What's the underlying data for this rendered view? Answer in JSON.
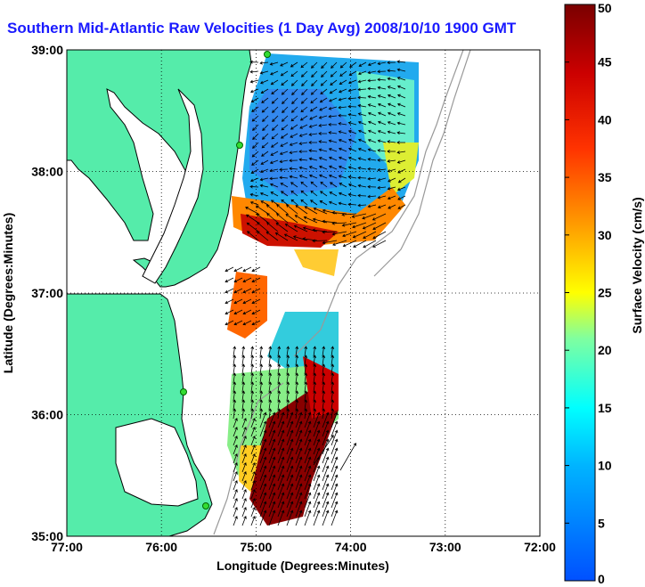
{
  "title": "Southern Mid-Atlantic Raw Velocities (1 Day Avg) 2008/10/10 1900 GMT",
  "x_axis": {
    "label": "Longitude (Degrees:Minutes)",
    "ticks": [
      {
        "value": -77,
        "label": "77:00"
      },
      {
        "value": -76,
        "label": "76:00"
      },
      {
        "value": -75,
        "label": "75:00"
      },
      {
        "value": -74,
        "label": "74:00"
      },
      {
        "value": -73,
        "label": "73:00"
      },
      {
        "value": -72,
        "label": "72:00"
      }
    ],
    "range": [
      -77,
      -72
    ]
  },
  "y_axis": {
    "label": "Latitude (Degrees:Minutes)",
    "ticks": [
      {
        "value": 39,
        "label": "39:00"
      },
      {
        "value": 38,
        "label": "38:00"
      },
      {
        "value": 37,
        "label": "37:00"
      },
      {
        "value": 36,
        "label": "36:00"
      },
      {
        "value": 35,
        "label": "35:00"
      }
    ],
    "range": [
      35,
      39
    ]
  },
  "colorbar": {
    "label": "Surface Velocity (cm/s)",
    "range": [
      0,
      50
    ],
    "ticks": [
      {
        "value": 0,
        "label": "0"
      },
      {
        "value": 5,
        "label": "5"
      },
      {
        "value": 10,
        "label": "10"
      },
      {
        "value": 15,
        "label": "15"
      },
      {
        "value": 20,
        "label": "20"
      },
      {
        "value": 25,
        "label": "25"
      },
      {
        "value": 30,
        "label": "30"
      },
      {
        "value": 35,
        "label": "35"
      },
      {
        "value": 40,
        "label": "40"
      },
      {
        "value": 45,
        "label": "45"
      },
      {
        "value": 50,
        "label": "50"
      }
    ]
  },
  "colors": {
    "land": "#55ecaa",
    "title": "#1a1aff",
    "grid": "#000000",
    "isobath": "#999999",
    "station": "#33dd33"
  },
  "grid": true
}
